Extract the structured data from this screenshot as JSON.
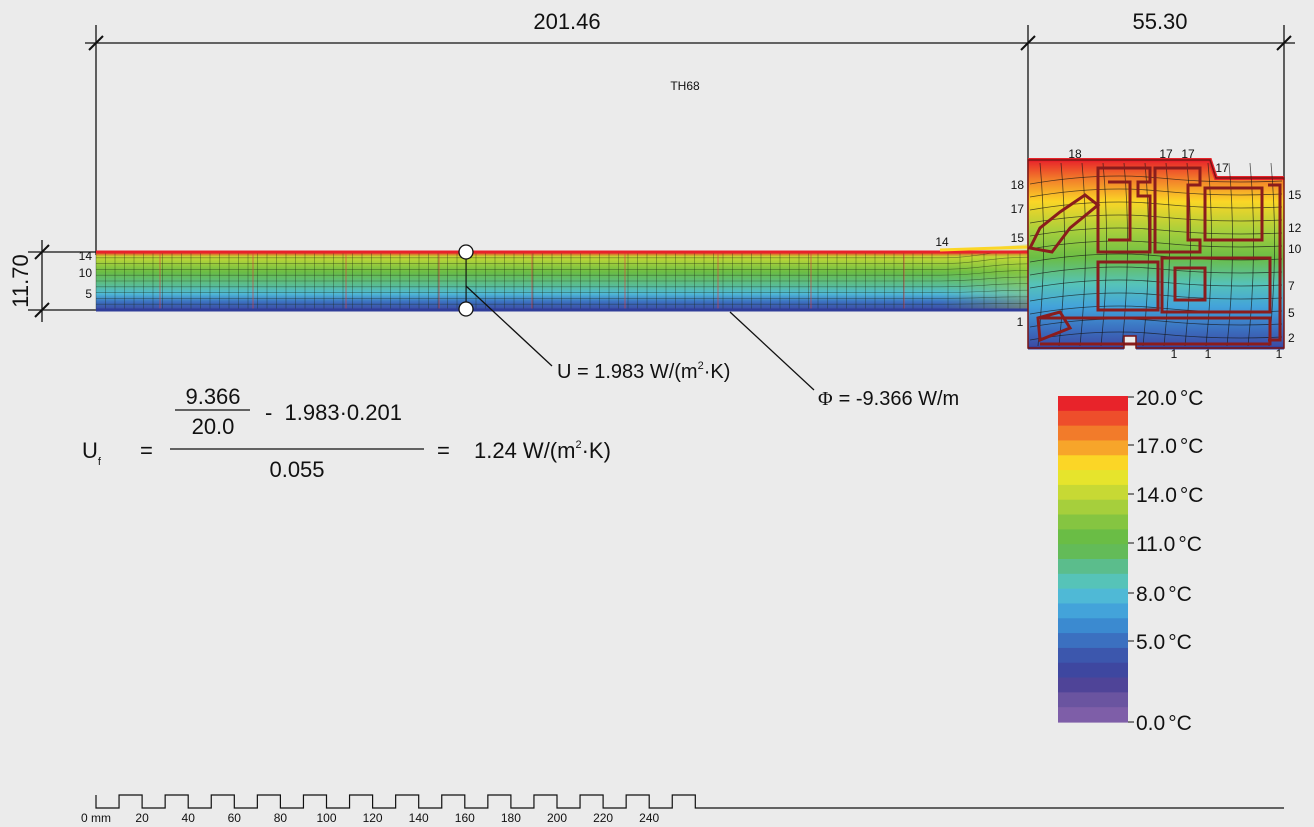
{
  "dimensions": {
    "top_left": "201.46",
    "top_right": "55.30",
    "left_vertical": "11.70"
  },
  "section_label": "TH68",
  "isotherm_labels": {
    "left": [
      "14",
      "10",
      "5"
    ],
    "transition": "14",
    "frame_top": [
      "18",
      "17",
      "17",
      "17"
    ],
    "frame_left": [
      "18",
      "17",
      "15"
    ],
    "frame_right": [
      "15",
      "12",
      "10",
      "7",
      "5",
      "2"
    ],
    "frame_bottom_left": "1",
    "frame_bottom": [
      "1",
      "1",
      "1"
    ]
  },
  "annotations": {
    "u_value": "U = 1.983 W/(m²·K)",
    "u_main": "U = 1.983 W/(m",
    "u_sup": "2",
    "u_tail": "·K)",
    "phi_symbol": "Φ",
    "phi_value": "= -9.366 W/m"
  },
  "formula": {
    "lhs_main": "U",
    "lhs_sub": "f",
    "equals": "=",
    "num_a": "9.366",
    "num_b": "20.0",
    "minus_term": "-  1.983·0.201",
    "denominator": "0.055",
    "equals2": "=",
    "result_main": "1.24 W/(m",
    "result_sup": "2",
    "result_tail": "·K)"
  },
  "legend": {
    "unit": "°C",
    "labels": [
      "20.0",
      "17.0",
      "14.0",
      "11.0",
      "8.0",
      "5.0",
      "0.0"
    ],
    "colors": [
      "#e8232a",
      "#ee4e2b",
      "#f27b2a",
      "#f7a52a",
      "#fbd626",
      "#e6e42c",
      "#c7d934",
      "#a6cf3c",
      "#85c541",
      "#6abd45",
      "#63bb58",
      "#5bbd8c",
      "#56c3b8",
      "#4fb9d6",
      "#43a3da",
      "#3b8ad0",
      "#3b70c0",
      "#3c57ad",
      "#3e47a0",
      "#4f4498",
      "#6a54a0",
      "#7e5ea8"
    ]
  },
  "scale": {
    "unit": "mm",
    "ticks": [
      "0",
      "20",
      "40",
      "60",
      "80",
      "100",
      "120",
      "140",
      "160",
      "180",
      "200",
      "220",
      "240"
    ]
  }
}
